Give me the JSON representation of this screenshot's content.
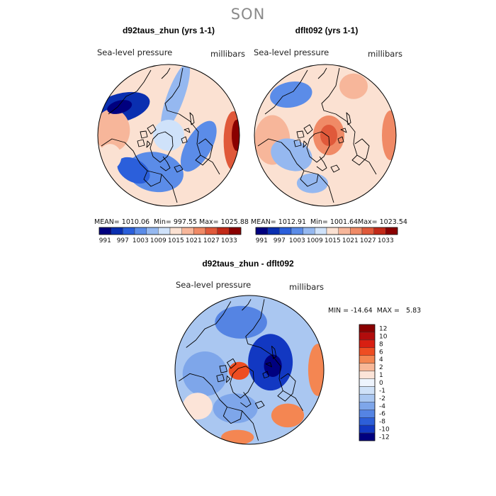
{
  "season_title": "SON",
  "colors": {
    "scale_abs": [
      "#00007f",
      "#0a2fb0",
      "#2b5fdb",
      "#5b8ce8",
      "#95b8f0",
      "#cfe2fa",
      "#fbe1d2",
      "#f7b69a",
      "#f08a66",
      "#e0593a",
      "#c22a18",
      "#8a0000"
    ],
    "scale_diff": [
      "#8a0000",
      "#b20c0c",
      "#d81f12",
      "#ee4d22",
      "#f48652",
      "#f8b898",
      "#fce4d8",
      "#eef4fd",
      "#cfe1f8",
      "#aac7f1",
      "#7ea6ea",
      "#5584e3",
      "#2d5fd8",
      "#1238c2",
      "#00007f"
    ]
  },
  "panels": {
    "left": {
      "title": "d92taus_zhun (yrs 1-1)",
      "field_label": "Sea-level pressure",
      "units_label": "millibars",
      "stats": {
        "mean": "MEAN= 1010.06",
        "min": "Min= 997.55",
        "max": "Max= 1025.88"
      }
    },
    "right": {
      "title": "dflt092 (yrs 1-1)",
      "field_label": "Sea-level pressure",
      "units_label": "millibars",
      "stats": {
        "mean": "MEAN= 1012.91",
        "min": "Min= 1001.64",
        "max": "Max= 1023.54"
      }
    },
    "diff": {
      "title": "d92taus_zhun - dflt092",
      "field_label": "Sea-level pressure",
      "units_label": "millibars",
      "minmax": "MIN = -14.64  MAX =   5.83"
    }
  },
  "chart_data": [
    {
      "type": "heatmap",
      "title": "d92taus_zhun (yrs 1-1)",
      "variable": "Sea-level pressure",
      "units": "millibars",
      "projection": "polar stereographic (North Pole)",
      "stats": {
        "mean": 1010.06,
        "min": 997.55,
        "max": 1025.88
      },
      "colorbar_ticks": [
        "991",
        "997",
        "1003",
        "1009",
        "1015",
        "1021",
        "1027",
        "1033"
      ],
      "features": [
        {
          "name": "low-north",
          "a": -150,
          "r": 0.78,
          "w": 0.42,
          "h": 0.2,
          "rot": -15,
          "v": 997
        },
        {
          "name": "low-north-core",
          "a": -150,
          "r": 0.8,
          "w": 0.18,
          "h": 0.09,
          "rot": -15,
          "v": 993
        },
        {
          "name": "low-ring-east",
          "a": -80,
          "r": 0.55,
          "w": 0.12,
          "h": 0.5,
          "rot": 20,
          "v": 1006
        },
        {
          "name": "low-south",
          "a": 110,
          "r": 0.55,
          "w": 0.4,
          "h": 0.28,
          "rot": 10,
          "v": 1002
        },
        {
          "name": "low-southwest",
          "a": 135,
          "r": 0.7,
          "w": 0.25,
          "h": 0.16,
          "rot": 30,
          "v": 1000
        },
        {
          "name": "low-east-arm",
          "a": 20,
          "r": 0.45,
          "w": 0.18,
          "h": 0.4,
          "rot": 30,
          "v": 1004
        },
        {
          "name": "center-pole",
          "a": 0,
          "r": 0.0,
          "w": 0.22,
          "h": 0.22,
          "rot": 0,
          "v": 1010
        },
        {
          "name": "high-east-rim",
          "a": 5,
          "r": 0.92,
          "w": 0.14,
          "h": 0.42,
          "rot": 0,
          "v": 1026
        },
        {
          "name": "high-east-core",
          "a": 0,
          "r": 0.96,
          "w": 0.07,
          "h": 0.22,
          "rot": 0,
          "v": 1031
        },
        {
          "name": "high-west",
          "a": -175,
          "r": 0.8,
          "w": 0.25,
          "h": 0.3,
          "rot": 0,
          "v": 1017
        },
        {
          "name": "high-southwest",
          "a": 160,
          "r": 0.88,
          "w": 0.16,
          "h": 0.18,
          "rot": 0,
          "v": 1015
        }
      ]
    },
    {
      "type": "heatmap",
      "title": "dflt092 (yrs 1-1)",
      "variable": "Sea-level pressure",
      "units": "millibars",
      "projection": "polar stereographic (North Pole)",
      "stats": {
        "mean": 1012.91,
        "min": 1001.64,
        "max": 1023.54
      },
      "colorbar_ticks": [
        "991",
        "997",
        "1003",
        "1009",
        "1015",
        "1021",
        "1027",
        "1033"
      ],
      "features": [
        {
          "name": "low-north",
          "a": -130,
          "r": 0.75,
          "w": 0.3,
          "h": 0.18,
          "rot": -10,
          "v": 1003
        },
        {
          "name": "low-southwest",
          "a": 150,
          "r": 0.55,
          "w": 0.3,
          "h": 0.22,
          "rot": 20,
          "v": 1005
        },
        {
          "name": "low-south",
          "a": 105,
          "r": 0.7,
          "w": 0.22,
          "h": 0.14,
          "rot": 0,
          "v": 1006
        },
        {
          "name": "high-center",
          "a": 0,
          "r": 0.05,
          "w": 0.22,
          "h": 0.28,
          "rot": 0,
          "v": 1020
        },
        {
          "name": "high-center-core",
          "a": 0,
          "r": 0.05,
          "w": 0.12,
          "h": 0.15,
          "rot": 0,
          "v": 1023
        },
        {
          "name": "high-west",
          "a": 175,
          "r": 0.75,
          "w": 0.25,
          "h": 0.35,
          "rot": 0,
          "v": 1018
        },
        {
          "name": "high-east-rim",
          "a": 0,
          "r": 0.92,
          "w": 0.12,
          "h": 0.35,
          "rot": 0,
          "v": 1020
        },
        {
          "name": "high-northeast",
          "a": -60,
          "r": 0.8,
          "w": 0.2,
          "h": 0.18,
          "rot": 0,
          "v": 1017
        }
      ]
    },
    {
      "type": "heatmap",
      "title": "d92taus_zhun - dflt092",
      "variable": "Sea-level pressure",
      "units": "millibars",
      "projection": "polar stereographic (North Pole)",
      "stats": {
        "min": -14.64,
        "max": 5.83
      },
      "colorbar_ticks": [
        "12",
        "10",
        "8",
        "6",
        "4",
        "2",
        "1",
        "0",
        "-1",
        "-2",
        "-4",
        "-6",
        "-8",
        "-10",
        "-12"
      ],
      "features": [
        {
          "name": "deep-low",
          "a": -20,
          "r": 0.3,
          "w": 0.3,
          "h": 0.38,
          "rot": 0,
          "v": -11
        },
        {
          "name": "deep-low-core",
          "a": -10,
          "r": 0.32,
          "w": 0.12,
          "h": 0.15,
          "rot": 0,
          "v": -14.6
        },
        {
          "name": "low-north",
          "a": -100,
          "r": 0.65,
          "w": 0.35,
          "h": 0.22,
          "rot": 0,
          "v": -8
        },
        {
          "name": "low-west",
          "a": 175,
          "r": 0.6,
          "w": 0.3,
          "h": 0.3,
          "rot": 0,
          "v": -6
        },
        {
          "name": "low-south",
          "a": 110,
          "r": 0.55,
          "w": 0.3,
          "h": 0.2,
          "rot": 0,
          "v": -5
        },
        {
          "name": "high-center-west",
          "a": 175,
          "r": 0.14,
          "w": 0.14,
          "h": 0.12,
          "rot": 0,
          "v": 4
        },
        {
          "name": "high-center-west-core",
          "a": 175,
          "r": 0.14,
          "w": 0.06,
          "h": 0.06,
          "rot": 0,
          "v": 5.8
        },
        {
          "name": "high-east-rim",
          "a": 0,
          "r": 0.92,
          "w": 0.13,
          "h": 0.35,
          "rot": 0,
          "v": 3
        },
        {
          "name": "high-southeast",
          "a": 50,
          "r": 0.8,
          "w": 0.22,
          "h": 0.16,
          "rot": 0,
          "v": 3
        },
        {
          "name": "high-south-rim",
          "a": 100,
          "r": 0.92,
          "w": 0.22,
          "h": 0.1,
          "rot": 0,
          "v": 3
        },
        {
          "name": "near-zero-southwest",
          "a": 145,
          "r": 0.85,
          "w": 0.2,
          "h": 0.18,
          "rot": 0,
          "v": 0.5
        }
      ]
    }
  ]
}
